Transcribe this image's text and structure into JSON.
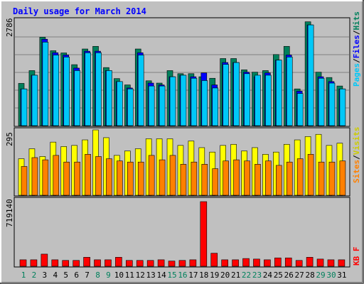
{
  "chart_data": [
    {
      "type": "bar",
      "title": "Daily usage for March 2014",
      "panel": "top",
      "ymax_label": "2786",
      "y_axis_text": [
        "Pages",
        "Files",
        "Hits"
      ],
      "categories": [
        "1",
        "2",
        "3",
        "4",
        "5",
        "6",
        "7",
        "8",
        "9",
        "10",
        "11",
        "12",
        "13",
        "14",
        "15",
        "16",
        "17",
        "18",
        "19",
        "20",
        "21",
        "22",
        "23",
        "24",
        "25",
        "26",
        "27",
        "28",
        "29",
        "30",
        "31"
      ],
      "weekend_days": [
        "1",
        "2",
        "8",
        "9",
        "15",
        "16",
        "22",
        "23",
        "29",
        "30"
      ],
      "series": [
        {
          "name": "Hits",
          "values": [
            1106,
            1441,
            2315,
            1961,
            1903,
            1596,
            2006,
            2075,
            1520,
            1232,
            1066,
            2006,
            1174,
            1114,
            1441,
            1360,
            1360,
            1280,
            1240,
            1756,
            1756,
            1461,
            1400,
            1441,
            1861,
            2075,
            962,
            2718,
            1400,
            1260,
            1038
          ]
        },
        {
          "name": "Files",
          "values": [
            962,
            1320,
            2262,
            1908,
            1848,
            1506,
            1948,
            1948,
            1441,
            1154,
            986,
            1908,
            1114,
            1066,
            1280,
            1320,
            1280,
            1380,
            1066,
            1652,
            1652,
            1400,
            1280,
            1380,
            1715,
            1848,
            902,
            2636,
            1280,
            1154,
            962
          ]
        },
        {
          "name": "Pages",
          "values": [
            962,
            1320,
            2186,
            1848,
            1796,
            1441,
            1908,
            1908,
            1441,
            1154,
            962,
            1848,
            1038,
            1038,
            1280,
            1320,
            1240,
            1180,
            986,
            1603,
            1652,
            1360,
            1320,
            1320,
            1715,
            1796,
            842,
            2636,
            1240,
            1114,
            962
          ]
        }
      ],
      "colors": {
        "Hits": "#00805c",
        "Files": "#0000ff",
        "Pages": "#00c8f8"
      }
    },
    {
      "type": "bar",
      "panel": "middle",
      "ymax_label": "295",
      "y_axis_text": [
        "Sites",
        "Visits"
      ],
      "categories": [
        "1",
        "2",
        "3",
        "4",
        "5",
        "6",
        "7",
        "8",
        "9",
        "10",
        "11",
        "12",
        "13",
        "14",
        "15",
        "16",
        "17",
        "18",
        "19",
        "20",
        "21",
        "22",
        "23",
        "24",
        "25",
        "26",
        "27",
        "28",
        "29",
        "30",
        "31"
      ],
      "series": [
        {
          "name": "Visits",
          "values": [
            165,
            210,
            175,
            240,
            220,
            225,
            250,
            295,
            260,
            180,
            200,
            210,
            255,
            255,
            255,
            225,
            245,
            215,
            195,
            225,
            230,
            200,
            215,
            185,
            195,
            230,
            250,
            265,
            275,
            225,
            235
          ]
        },
        {
          "name": "Sites",
          "values": [
            130,
            170,
            160,
            180,
            150,
            150,
            185,
            175,
            165,
            155,
            150,
            150,
            180,
            160,
            180,
            140,
            150,
            140,
            120,
            155,
            160,
            155,
            140,
            155,
            135,
            150,
            165,
            185,
            150,
            150,
            155
          ]
        }
      ],
      "colors": {
        "Visits": "#ffff00",
        "Sites": "#ff8000"
      }
    },
    {
      "type": "bar",
      "panel": "bottom",
      "ymax_label": "719140",
      "y_axis_text": [
        "KB",
        "F"
      ],
      "categories": [
        "1",
        "2",
        "3",
        "4",
        "5",
        "6",
        "7",
        "8",
        "9",
        "10",
        "11",
        "12",
        "13",
        "14",
        "15",
        "16",
        "17",
        "18",
        "19",
        "20",
        "21",
        "22",
        "23",
        "24",
        "25",
        "26",
        "27",
        "28",
        "29",
        "30",
        "31"
      ],
      "series": [
        {
          "name": "KB F",
          "values": [
            72000,
            72000,
            135000,
            72000,
            65000,
            65000,
            100000,
            72000,
            72000,
            100000,
            65000,
            65000,
            65000,
            72000,
            58000,
            65000,
            72000,
            719140,
            145000,
            72000,
            72000,
            86000,
            80000,
            72000,
            93000,
            93000,
            65000,
            100000,
            80000,
            72000,
            72000
          ]
        }
      ],
      "colors": {
        "KB F": "#ff0000"
      }
    }
  ]
}
